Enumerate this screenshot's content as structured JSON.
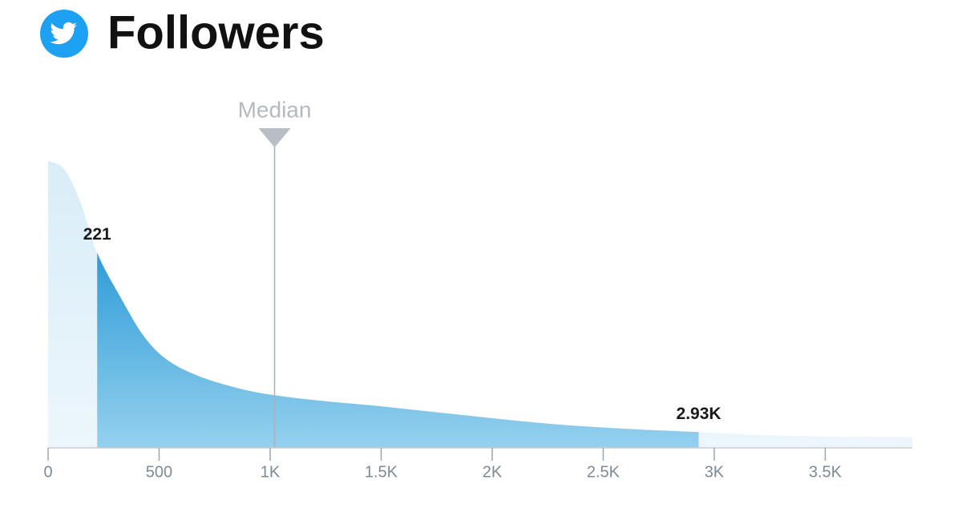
{
  "chart_data": {
    "type": "area",
    "title": "Followers",
    "x": [
      0,
      72,
      144,
      221,
      325,
      433,
      542,
      686,
      866,
      1018,
      1227,
      1498,
      1769,
      2040,
      2310,
      2599,
      2910,
      3213,
      3574,
      3892
    ],
    "values": [
      359,
      349,
      309,
      244,
      189,
      139,
      109,
      89,
      74,
      66,
      59,
      52,
      44,
      36,
      29,
      24,
      20,
      16,
      14,
      13
    ],
    "xlim": [
      0,
      3892
    ],
    "ylim": [
      0,
      360
    ],
    "xticks": [
      0,
      500,
      {
        "value": 1000,
        "label": "1K"
      },
      {
        "value": 1500,
        "label": "1.5K"
      },
      {
        "value": 2000,
        "label": "2K"
      },
      {
        "value": 2500,
        "label": "2.5K"
      },
      {
        "value": 3000,
        "label": "3K"
      },
      {
        "value": 3500,
        "label": "3.5K"
      }
    ],
    "range": {
      "low": 221,
      "low_label": "221",
      "high": 2930,
      "high_label": "2.93K"
    },
    "median": {
      "value": 1020,
      "label": "Median"
    },
    "color": "#2b9bd6",
    "background_color": "#dceff9"
  }
}
